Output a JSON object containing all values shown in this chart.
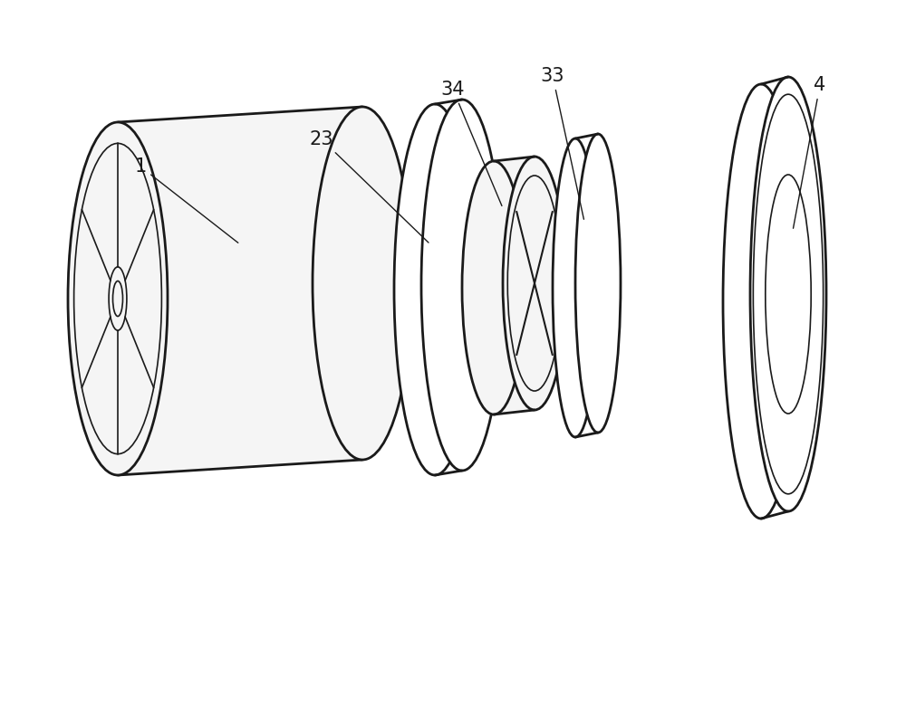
{
  "bg_color": "#ffffff",
  "line_color": "#1a1a1a",
  "fill_light": "#f5f5f5",
  "fill_white": "#ffffff",
  "fill_mid": "#e8e8e8",
  "lw_main": 2.0,
  "lw_thin": 1.2,
  "lw_label": 1.0,
  "label_fs": 15,
  "fig_w": 10.0,
  "fig_h": 8.0,
  "dpi": 100
}
